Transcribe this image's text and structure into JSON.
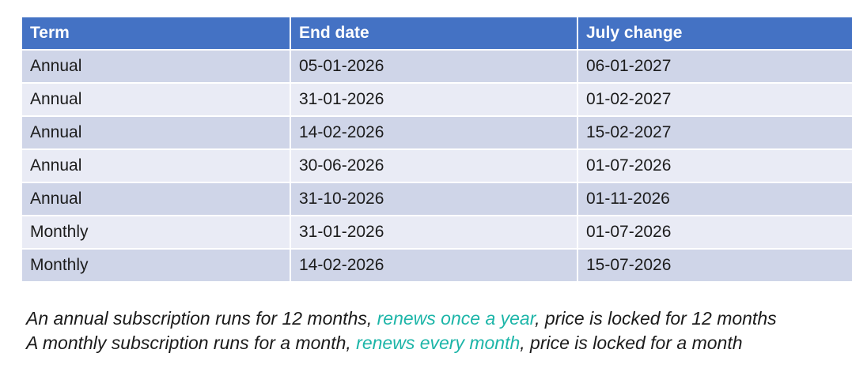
{
  "table": {
    "columns": [
      "Term",
      "End date",
      "July change"
    ],
    "rows": [
      [
        "Annual",
        "05-01-2026",
        "06-01-2027"
      ],
      [
        "Annual",
        "31-01-2026",
        "01-02-2027"
      ],
      [
        "Annual",
        "14-02-2026",
        "15-02-2027"
      ],
      [
        "Annual",
        "30-06-2026",
        "01-07-2026"
      ],
      [
        "Annual",
        "31-10-2026",
        "01-11-2026"
      ],
      [
        "Monthly",
        "31-01-2026",
        "01-07-2026"
      ],
      [
        "Monthly",
        "14-02-2026",
        "15-07-2026"
      ]
    ]
  },
  "notes": [
    {
      "prefix": "An annual subscription runs for 12 months, ",
      "highlight": "renews once a year",
      "suffix": ", price is locked for 12 months"
    },
    {
      "prefix": "A monthly subscription runs for a month, ",
      "highlight": "renews every month",
      "suffix": ", price is locked for a month"
    }
  ],
  "colors": {
    "header_bg": "#4472C4",
    "header_text": "#FFFFFF",
    "row_band_dark": "#CFD5E8",
    "row_band_light": "#E9EBF5",
    "body_text": "#1C1C1C",
    "highlight_text": "#1CB5A8",
    "page_bg": "#FFFFFF"
  }
}
